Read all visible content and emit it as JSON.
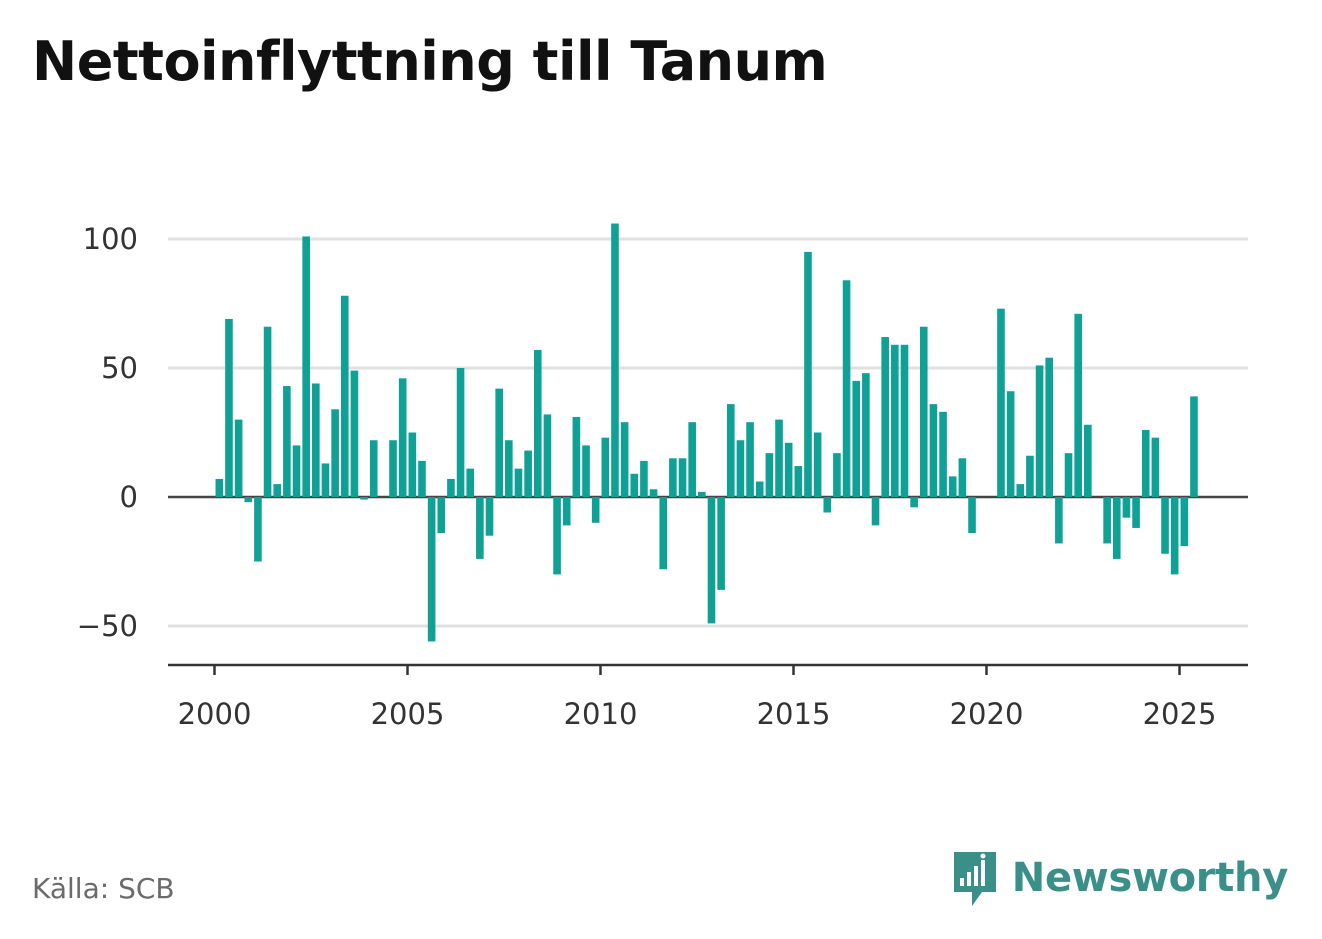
{
  "title": "Nettoinflyttning till Tanum",
  "source": "Källa: SCB",
  "brand": {
    "name": "Newsworthy",
    "icon": "newsworthy-logo-icon",
    "color": "#3a8f88"
  },
  "colors": {
    "bar": "#0fa196",
    "grid": "#e0e0e0",
    "zero_line": "#444444",
    "axis": "#333333"
  },
  "chart_data": {
    "type": "bar",
    "title": "Nettoinflyttning till Tanum",
    "xlabel": "",
    "ylabel": "",
    "x_ticks": [
      2000,
      2005,
      2010,
      2015,
      2020,
      2025
    ],
    "y_ticks": [
      -50,
      0,
      50,
      100
    ],
    "y_tick_labels": [
      "−50",
      "0",
      "50",
      "100"
    ],
    "ylim": [
      -64,
      107
    ],
    "xlim": [
      1998.75,
      2026.75
    ],
    "grid": true,
    "legend": "none",
    "series": [
      {
        "values": [
          7,
          69,
          30,
          -2,
          -25,
          66,
          5,
          43,
          20,
          101,
          44,
          13,
          34,
          78,
          49,
          -1,
          22,
          0,
          22,
          46,
          25,
          14,
          -56,
          -14,
          7,
          50,
          11,
          -24,
          -15,
          42,
          22,
          11,
          18,
          57,
          32,
          -30,
          -11,
          31,
          20,
          -10,
          23,
          106,
          29,
          9,
          14,
          3,
          -28,
          15,
          15,
          29,
          2,
          -49,
          -36,
          36,
          22,
          29,
          6,
          17,
          30,
          21,
          12,
          95,
          25,
          -6,
          17,
          84,
          45,
          48,
          -11,
          62,
          59,
          59,
          -4,
          66,
          36,
          33,
          8,
          15,
          -14,
          0,
          0,
          73,
          41,
          5,
          16,
          51,
          54,
          -18,
          17,
          71,
          28,
          0,
          -18,
          -24,
          -8,
          -12,
          26,
          23,
          -22,
          -30,
          -19,
          39
        ],
        "x_start": 2000.125,
        "x_step": 0.25
      }
    ]
  }
}
